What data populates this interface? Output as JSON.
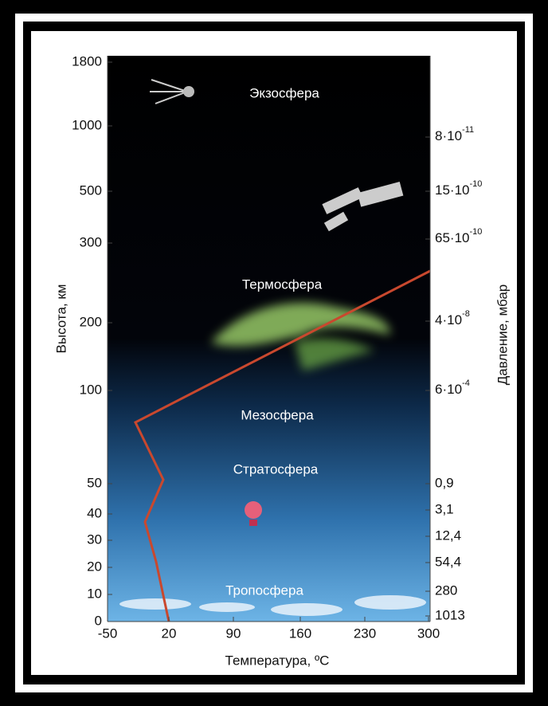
{
  "left_axis": {
    "title": "Высота, км",
    "labels": [
      "1800",
      "1000",
      "500",
      "300",
      "200",
      "100",
      "50",
      "40",
      "30",
      "20",
      "10",
      "0"
    ]
  },
  "right_axis": {
    "title": "Давление, мбар",
    "labels": [
      {
        "base": "8·10",
        "exp": "-11"
      },
      {
        "base": "15·10",
        "exp": "-10"
      },
      {
        "base": "65·10",
        "exp": "-10"
      },
      {
        "base": "4·10",
        "exp": "-8"
      },
      {
        "base": "6·10",
        "exp": "-4"
      },
      "0,9",
      "3,1",
      "12,4",
      "54,4",
      "280",
      "1013"
    ]
  },
  "bottom_axis": {
    "title": "Температура, ºC",
    "labels": [
      "-50",
      "20",
      "90",
      "160",
      "230",
      "300"
    ]
  },
  "layers": [
    "Экзосфера",
    "Термосфера",
    "Мезосфера",
    "Стратосфера",
    "Тропосфера"
  ]
}
